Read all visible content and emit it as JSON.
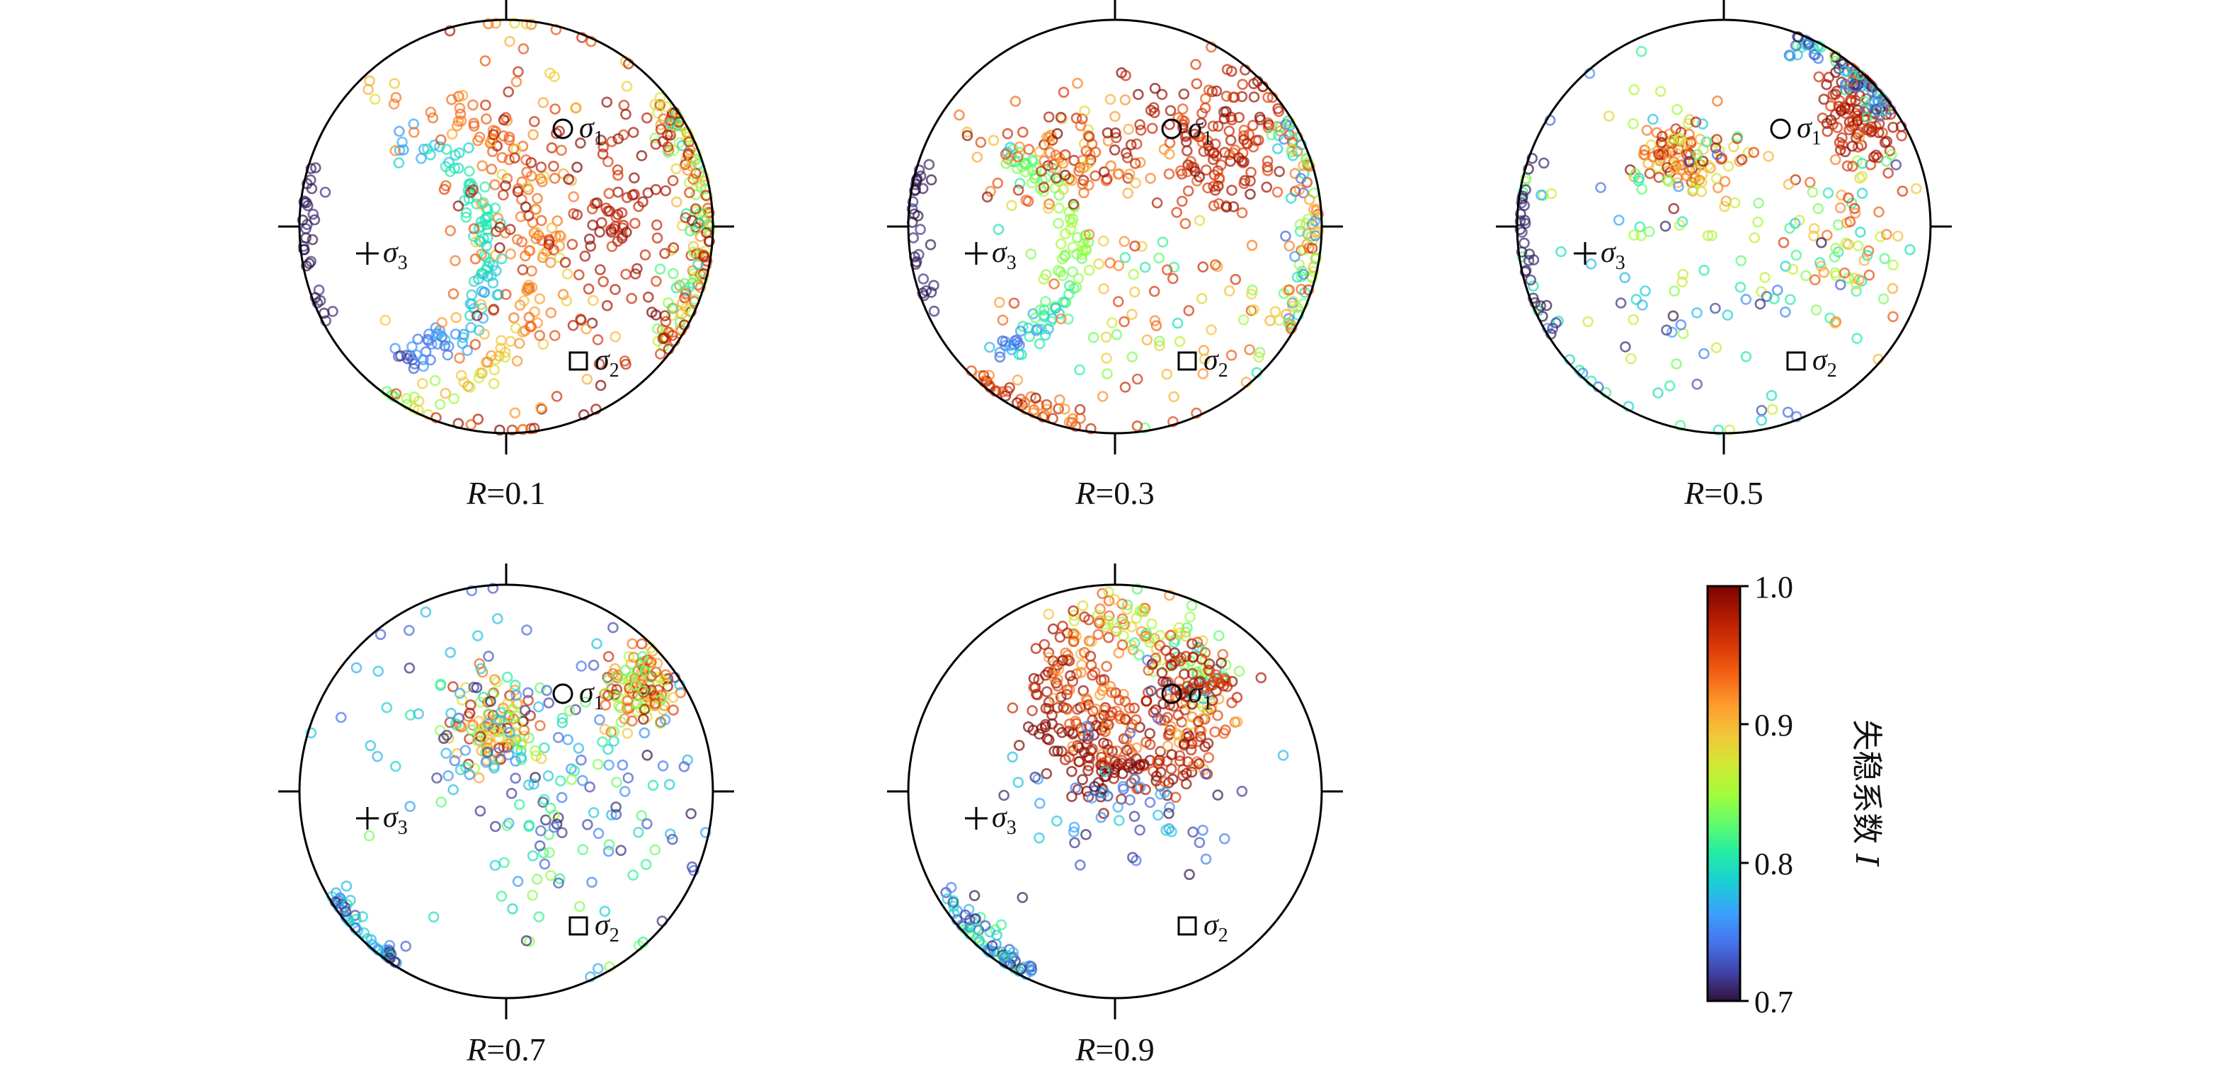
{
  "chart_data": {
    "type": "scatter",
    "projection": "stereographic net (circle), points = open circles colored by I",
    "panels": [
      {
        "id": "p1",
        "label_var": "R",
        "label_eq": "=0.1",
        "value": 0.1,
        "pattern": "r01"
      },
      {
        "id": "p2",
        "label_var": "R",
        "label_eq": "=0.3",
        "value": 0.3,
        "pattern": "r03"
      },
      {
        "id": "p3",
        "label_var": "R",
        "label_eq": "=0.5",
        "value": 0.5,
        "pattern": "r05"
      },
      {
        "id": "p4",
        "label_var": "R",
        "label_eq": "=0.7",
        "value": 0.7,
        "pattern": "r07"
      },
      {
        "id": "p5",
        "label_var": "R",
        "label_eq": "=0.9",
        "value": 0.9,
        "pattern": "r09"
      }
    ],
    "stress_markers": [
      {
        "id": "sigma1",
        "symbol": "circle",
        "text": "σ",
        "sub": "1"
      },
      {
        "id": "sigma2",
        "symbol": "square",
        "text": "σ",
        "sub": "2"
      },
      {
        "id": "sigma3",
        "symbol": "plus",
        "text": "σ",
        "sub": "3"
      }
    ],
    "colorbar": {
      "title": "失稳系数",
      "title_var": "I",
      "min": 0.7,
      "max": 1.0,
      "ticks": [
        "0.7",
        "0.8",
        "0.9",
        "1.0"
      ],
      "colormap": [
        "#30123b",
        "#4145ab",
        "#4675ed",
        "#39a2fc",
        "#1bcfd4",
        "#24eca6",
        "#61fc6c",
        "#a4fc3b",
        "#d1e834",
        "#f3c63a",
        "#fe9b2d",
        "#f36315",
        "#d93806",
        "#b11901",
        "#7a0402"
      ]
    }
  }
}
